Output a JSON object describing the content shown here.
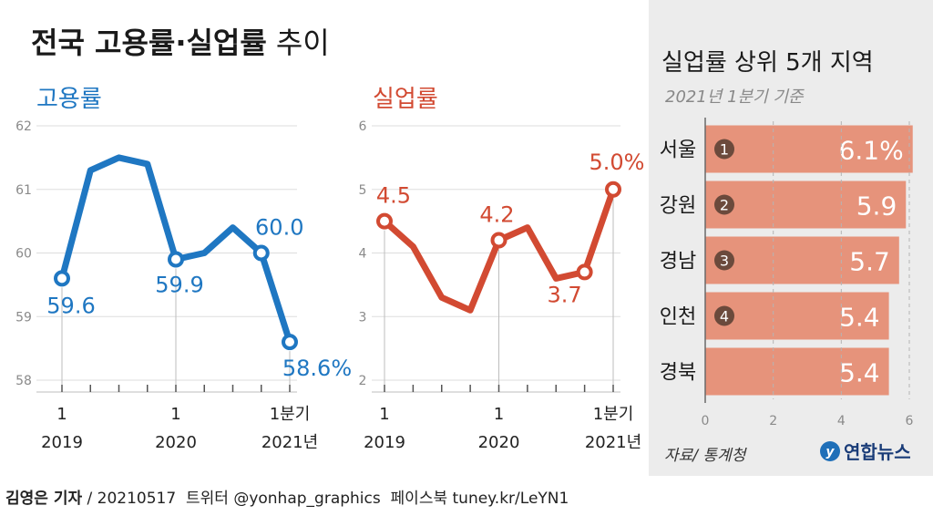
{
  "header": {
    "title_bold": "전국 고용률·실업률",
    "title_light": "추이"
  },
  "colors": {
    "employment": "#1f77c2",
    "unemployment": "#d24a32",
    "bar": "#e6937b",
    "rank_badge": "#6b4a3c",
    "panel_bg": "#ececec",
    "gray_text": "#888888"
  },
  "chart_data": [
    {
      "type": "line",
      "title": "고용률",
      "x": [
        "2019-1",
        "2019-2",
        "2019-3",
        "2019-4",
        "2020-1",
        "2020-2",
        "2020-3",
        "2020-4",
        "2021-1"
      ],
      "series": [
        {
          "name": "고용률",
          "values": [
            59.6,
            61.3,
            61.5,
            61.4,
            59.9,
            60.0,
            60.4,
            60.0,
            58.6
          ]
        }
      ],
      "point_labels": [
        {
          "index": 0,
          "text": "59.6"
        },
        {
          "index": 4,
          "text": "59.9"
        },
        {
          "index": 7,
          "text": "60.0"
        },
        {
          "index": 8,
          "text": "58.6%"
        }
      ],
      "ylim": [
        58,
        62
      ],
      "y_ticks": [
        "58",
        "59",
        "60",
        "61",
        "62"
      ],
      "x_tick_labels": [
        {
          "index": 0,
          "top": "1",
          "bottom": "2019"
        },
        {
          "index": 4,
          "top": "1",
          "bottom": "2020"
        },
        {
          "index": 8,
          "top": "1분기",
          "bottom": "2021년"
        }
      ],
      "grid": true
    },
    {
      "type": "line",
      "title": "실업률",
      "x": [
        "2019-1",
        "2019-2",
        "2019-3",
        "2019-4",
        "2020-1",
        "2020-2",
        "2020-3",
        "2020-4",
        "2021-1"
      ],
      "series": [
        {
          "name": "실업률",
          "values": [
            4.5,
            4.1,
            3.3,
            3.1,
            4.2,
            4.4,
            3.6,
            3.7,
            5.0
          ]
        }
      ],
      "point_labels": [
        {
          "index": 0,
          "text": "4.5"
        },
        {
          "index": 4,
          "text": "4.2"
        },
        {
          "index": 7,
          "text": "3.7"
        },
        {
          "index": 8,
          "text": "5.0%"
        }
      ],
      "ylim": [
        2,
        6
      ],
      "y_ticks": [
        "2",
        "3",
        "4",
        "5",
        "6"
      ],
      "x_tick_labels": [
        {
          "index": 0,
          "top": "1",
          "bottom": "2019"
        },
        {
          "index": 4,
          "top": "1",
          "bottom": "2020"
        },
        {
          "index": 8,
          "top": "1분기",
          "bottom": "2021년"
        }
      ],
      "grid": true
    },
    {
      "type": "bar",
      "title": "실업률 상위 5개 지역",
      "subtitle": "2021년 1분기 기준",
      "orientation": "horizontal",
      "categories": [
        "서울",
        "강원",
        "경남",
        "인천",
        "경북"
      ],
      "ranks": [
        "1",
        "2",
        "3",
        "4",
        ""
      ],
      "values": [
        6.1,
        5.9,
        5.7,
        5.4,
        5.4
      ],
      "value_labels": [
        "6.1%",
        "5.9",
        "5.7",
        "5.4",
        "5.4"
      ],
      "xlim": [
        0,
        6
      ],
      "x_ticks": [
        "0",
        "2",
        "4",
        "6"
      ],
      "source": "자료/ 통계청",
      "grid": true
    }
  ],
  "footer": {
    "logo": "연합뉴스",
    "byline_bold": "김영은 기자",
    "byline_rest": " / 20210517  트위터 @yonhap_graphics  페이스북 tuney.kr/LeYN1"
  }
}
